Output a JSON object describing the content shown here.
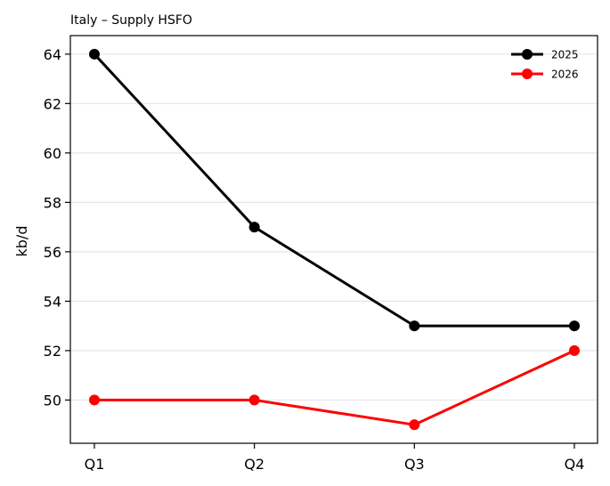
{
  "chart_data": {
    "type": "line",
    "title": "Italy – Supply HSFO",
    "xlabel": "",
    "ylabel": "kb/d",
    "categories": [
      "Q1",
      "Q2",
      "Q3",
      "Q4"
    ],
    "series": [
      {
        "name": "2025",
        "values": [
          64,
          57,
          53,
          53
        ],
        "color": "#000000"
      },
      {
        "name": "2026",
        "values": [
          50,
          50,
          49,
          52
        ],
        "color": "#ff0000"
      }
    ],
    "ylim": [
      48.25,
      64.75
    ],
    "yticks": [
      50,
      52,
      54,
      56,
      58,
      60,
      62,
      64
    ],
    "grid": "horizontal",
    "legend": "top-right"
  }
}
